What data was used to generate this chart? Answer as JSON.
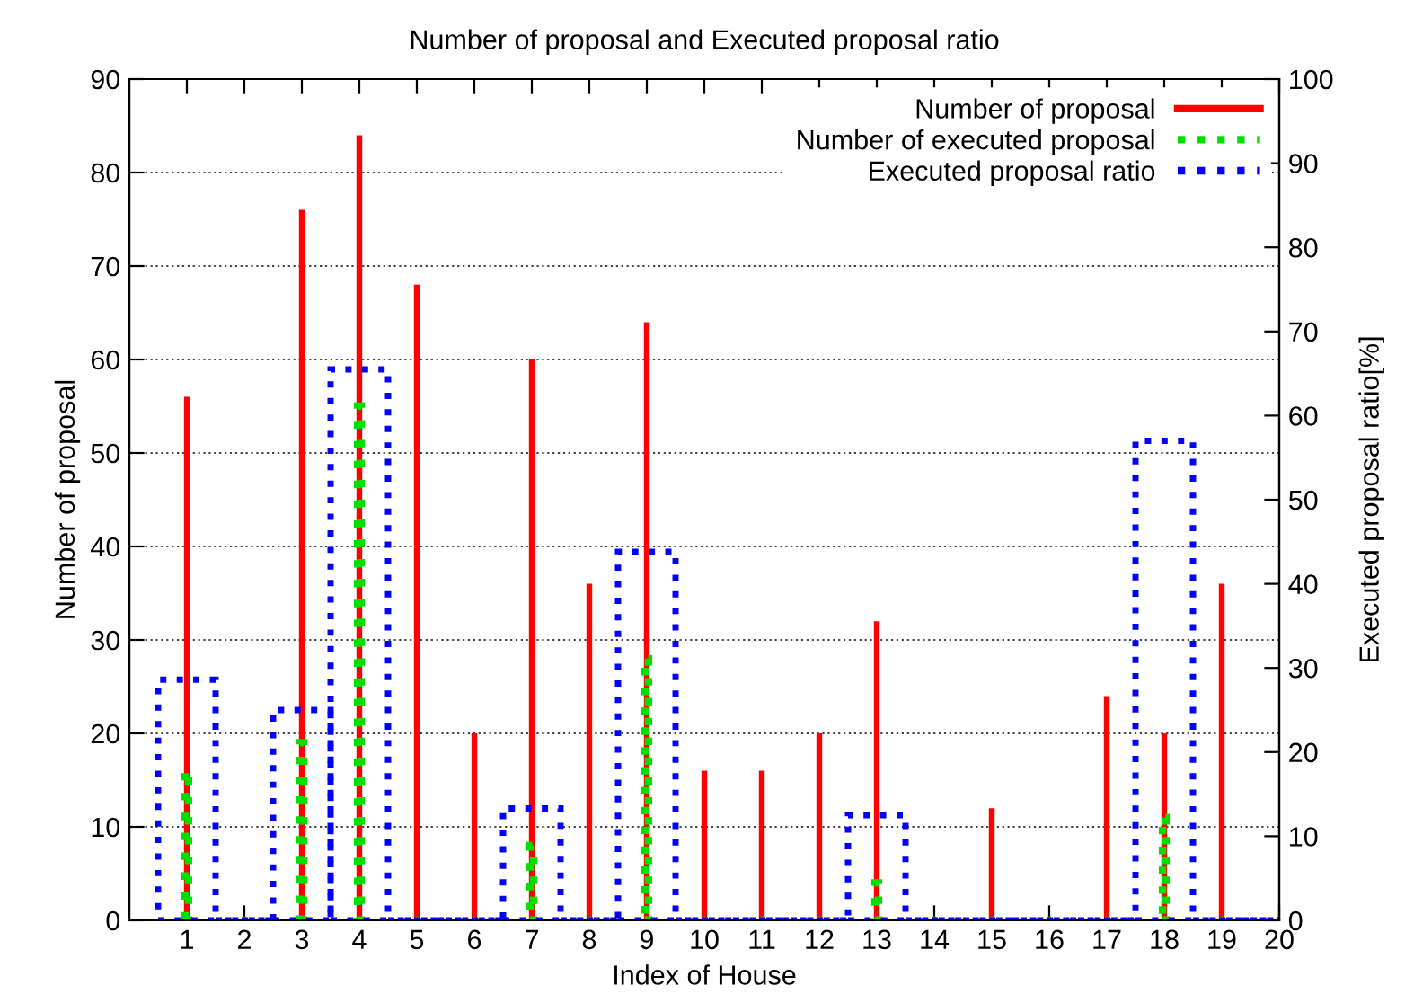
{
  "chart_data": {
    "type": "bar",
    "title": "Number of proposal and Executed proposal ratio",
    "xlabel": "Index of House",
    "ylabel": "Number of proposal",
    "y2label": "Executed proposal ratio[%]",
    "x": [
      1,
      2,
      3,
      4,
      5,
      6,
      7,
      8,
      9,
      10,
      11,
      12,
      13,
      14,
      15,
      16,
      17,
      18,
      19,
      20
    ],
    "series": [
      {
        "name": "Number of proposal",
        "color": "#ff0000",
        "line_style": "solid",
        "axis": "y",
        "values": [
          56,
          0,
          76,
          84,
          68,
          20,
          60,
          36,
          64,
          16,
          16,
          20,
          32,
          0,
          12,
          0,
          24,
          20,
          36,
          0
        ]
      },
      {
        "name": "Number of executed proposal",
        "color": "#00e000",
        "line_style": "dotted",
        "axis": "y",
        "values": [
          16,
          0,
          19,
          55,
          0,
          0,
          8,
          0,
          28,
          0,
          0,
          0,
          4,
          0,
          0,
          0,
          0,
          11,
          0,
          0
        ]
      },
      {
        "name": "Executed proposal ratio",
        "color": "#0000ff",
        "line_style": "dotted",
        "axis": "y2",
        "values": [
          28.6,
          0,
          25,
          65.5,
          0,
          0,
          13.3,
          0,
          43.8,
          0,
          0,
          0,
          12.5,
          0,
          0,
          0,
          0,
          57,
          0,
          0
        ]
      }
    ],
    "xlim": [
      0,
      20
    ],
    "xticks": [
      1,
      2,
      3,
      4,
      5,
      6,
      7,
      8,
      9,
      10,
      11,
      12,
      13,
      14,
      15,
      16,
      17,
      18,
      19,
      20
    ],
    "ylim": [
      0,
      90
    ],
    "yticks": [
      0,
      10,
      20,
      30,
      40,
      50,
      60,
      70,
      80,
      90
    ],
    "y2lim": [
      0,
      100
    ],
    "y2ticks": [
      0,
      10,
      20,
      30,
      40,
      50,
      60,
      70,
      80,
      90,
      100
    ],
    "grid": "y",
    "legend": "top right"
  }
}
